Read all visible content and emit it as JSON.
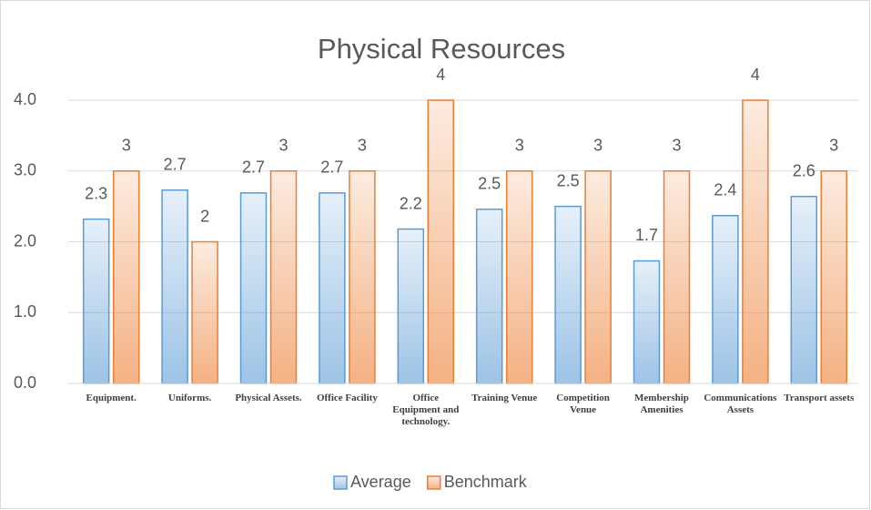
{
  "chart_data": {
    "type": "bar",
    "title": "Physical Resources",
    "categories": [
      "Equipment.",
      "Uniforms.",
      "Physical Assets.",
      "Office Facility",
      "Office Equipment and technology.",
      "Training Venue",
      "Competition Venue",
      "Membership Amenities",
      "Communications Assets",
      "Transport assets"
    ],
    "series": [
      {
        "name": "Average",
        "color": "#5b9bd5",
        "values": [
          2.32,
          2.73,
          2.69,
          2.69,
          2.18,
          2.46,
          2.5,
          1.73,
          2.37,
          2.64
        ],
        "value_labels": [
          "2.3",
          "2.7",
          "2.7",
          "2.7",
          "2.2",
          "2.5",
          "2.5",
          "1.7",
          "2.4",
          "2.6"
        ]
      },
      {
        "name": "Benchmark",
        "color": "#ed7d31",
        "values": [
          3,
          2,
          3,
          3,
          4,
          3,
          3,
          3,
          4,
          3
        ]
      }
    ],
    "ylim": [
      0,
      4
    ],
    "yticks": [
      {
        "value": 0,
        "label": "0.0"
      },
      {
        "value": 1,
        "label": "1.0"
      },
      {
        "value": 2,
        "label": "2.0"
      },
      {
        "value": 3,
        "label": "3.0"
      },
      {
        "value": 4,
        "label": "4.0"
      }
    ],
    "grid": true,
    "legend": "bottom"
  }
}
